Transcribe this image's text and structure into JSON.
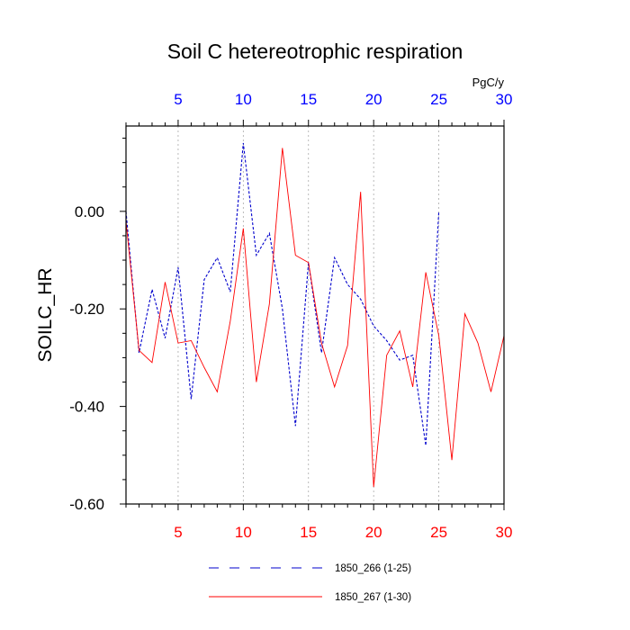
{
  "chart_data": {
    "type": "line",
    "title": "Soil C hetereotrophic respiration",
    "ylabel": "SOILC_HR",
    "units": "PgC/y",
    "xlim": [
      1,
      30
    ],
    "ylim": [
      -0.6,
      0.175
    ],
    "xticks": [
      5,
      10,
      15,
      20,
      25,
      30
    ],
    "xtick_labels": [
      "5",
      "10",
      "15",
      "20",
      "25",
      "30"
    ],
    "yticks": [
      0.0,
      -0.2,
      -0.4,
      -0.6
    ],
    "ytick_labels": [
      "0.00",
      "-0.20",
      "-0.40",
      "-0.60"
    ],
    "top_axis_color": "#0000ff",
    "bottom_axis_color": "#ff0000",
    "grid": "vertical dotted at major x ticks",
    "series": [
      {
        "name": "1850_266 (1-25)",
        "color": "#0000cc",
        "style": "dashed",
        "x": [
          1,
          2,
          3,
          4,
          5,
          6,
          7,
          8,
          9,
          10,
          11,
          12,
          13,
          14,
          15,
          16,
          17,
          18,
          19,
          20,
          21,
          22,
          23,
          24,
          25
        ],
        "values": [
          0.0,
          -0.29,
          -0.16,
          -0.26,
          -0.115,
          -0.385,
          -0.14,
          -0.095,
          -0.165,
          0.14,
          -0.09,
          -0.045,
          -0.2,
          -0.44,
          -0.105,
          -0.29,
          -0.095,
          -0.15,
          -0.18,
          -0.235,
          -0.265,
          -0.305,
          -0.295,
          -0.48,
          0.0
        ]
      },
      {
        "name": "1850_267 (1-30)",
        "color": "#ff0000",
        "style": "solid",
        "x": [
          1,
          2,
          3,
          4,
          5,
          6,
          7,
          8,
          9,
          10,
          11,
          12,
          13,
          14,
          15,
          16,
          17,
          18,
          19,
          20,
          21,
          22,
          23,
          24,
          25,
          26,
          27,
          28,
          29,
          30
        ],
        "values": [
          -0.02,
          -0.285,
          -0.31,
          -0.145,
          -0.27,
          -0.265,
          -0.32,
          -0.37,
          -0.225,
          -0.035,
          -0.35,
          -0.19,
          0.13,
          -0.09,
          -0.105,
          -0.27,
          -0.36,
          -0.275,
          0.04,
          -0.565,
          -0.295,
          -0.245,
          -0.36,
          -0.125,
          -0.255,
          -0.51,
          -0.21,
          -0.27,
          -0.37,
          -0.255
        ]
      }
    ]
  }
}
